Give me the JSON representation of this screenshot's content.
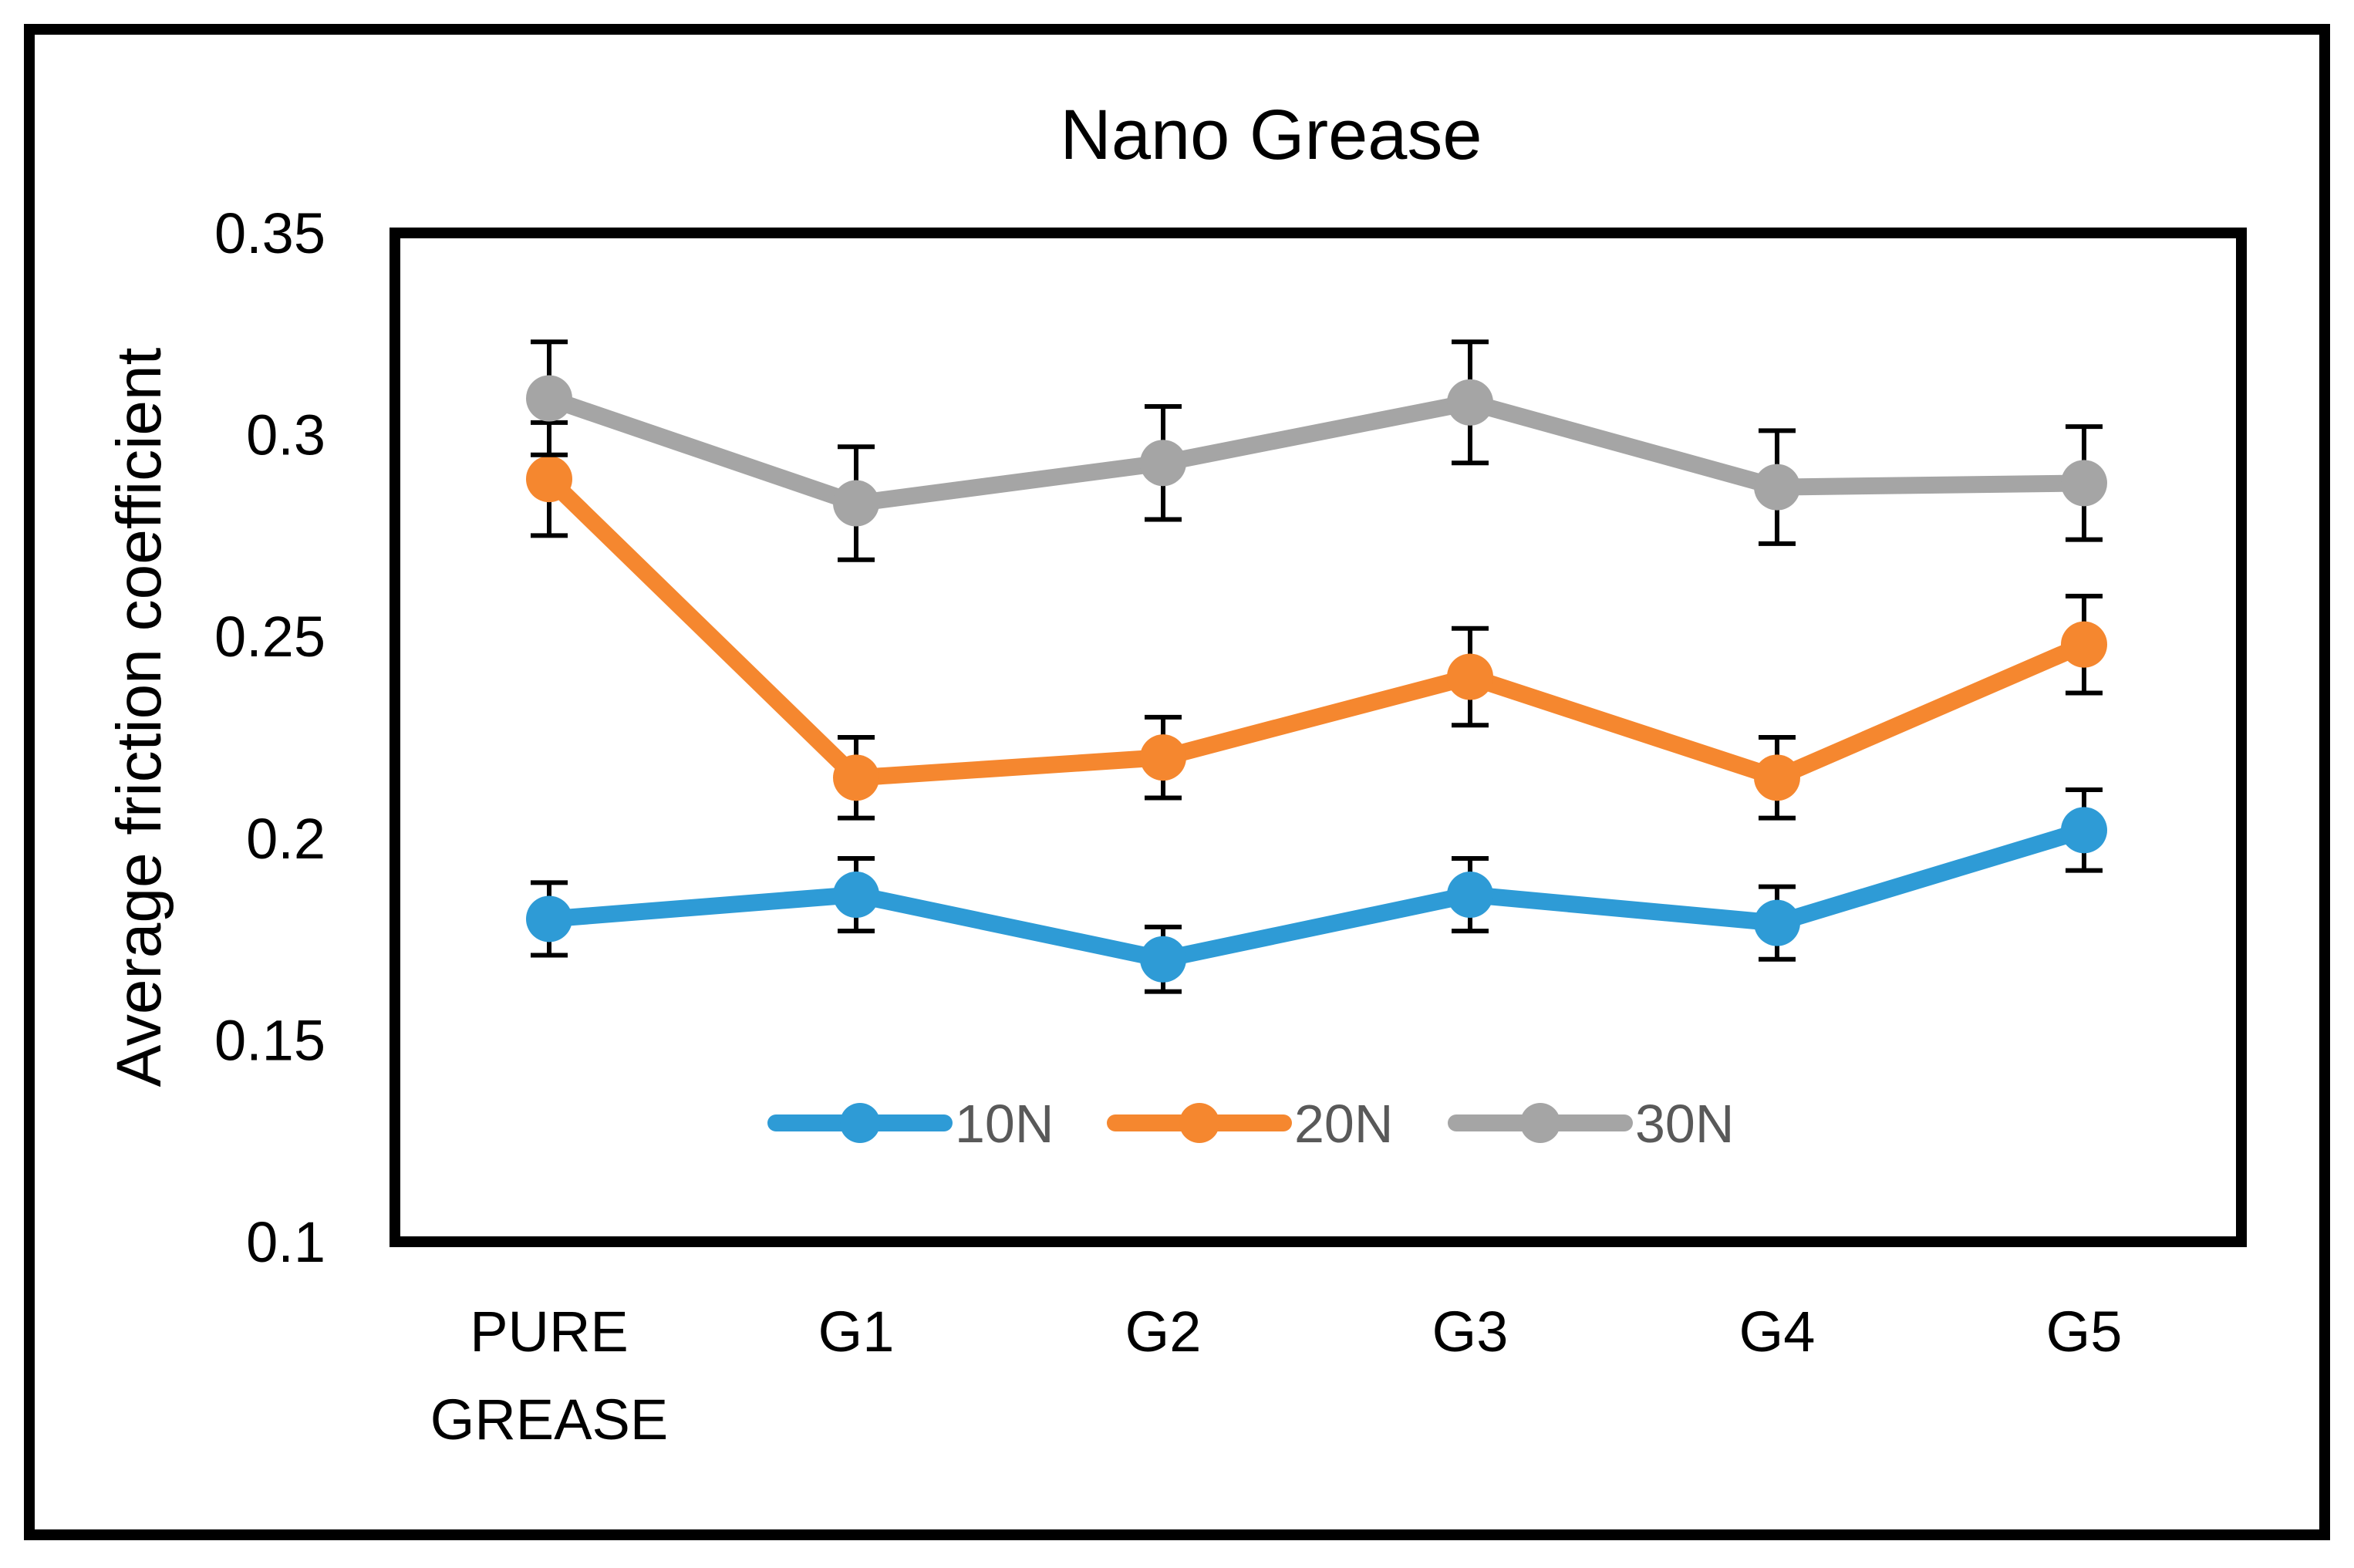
{
  "chart_data": {
    "type": "line",
    "title": "Nano Grease",
    "xlabel": "",
    "ylabel": "Average friction coefficient",
    "ylim": [
      0.1,
      0.35
    ],
    "yticks": [
      "0.1",
      "0.15",
      "0.2",
      "0.25",
      "0.3",
      "0.35"
    ],
    "categories": [
      [
        "PURE",
        "GREASE"
      ],
      [
        "G1"
      ],
      [
        "G2"
      ],
      [
        "G3"
      ],
      [
        "G4"
      ],
      [
        "G5"
      ]
    ],
    "legend_position": "bottom-inside",
    "grid": false,
    "error_bars": true,
    "series": [
      {
        "name": "10N",
        "color": "#2E9BD6",
        "values": [
          0.18,
          0.186,
          0.17,
          0.186,
          0.179,
          0.202
        ],
        "errors": [
          0.009,
          0.009,
          0.008,
          0.009,
          0.009,
          0.01
        ]
      },
      {
        "name": "20N",
        "color": "#F5872F",
        "values": [
          0.289,
          0.215,
          0.22,
          0.24,
          0.215,
          0.248
        ],
        "errors": [
          0.014,
          0.01,
          0.01,
          0.012,
          0.01,
          0.012
        ]
      },
      {
        "name": "30N",
        "color": "#A5A5A5",
        "values": [
          0.309,
          0.283,
          0.293,
          0.308,
          0.287,
          0.288
        ],
        "errors": [
          0.014,
          0.014,
          0.014,
          0.015,
          0.014,
          0.014
        ]
      }
    ]
  }
}
